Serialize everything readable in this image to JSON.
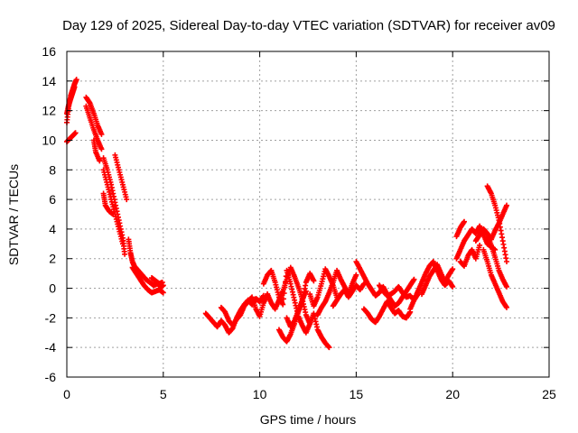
{
  "chart_data": {
    "type": "scatter",
    "title": "Day 129 of 2025, Sidereal Day-to-day VTEC variation (SDTVAR) for receiver av09",
    "xlabel": "GPS time / hours",
    "ylabel": "SDTVAR / TECUs",
    "xlim": [
      0,
      25
    ],
    "ylim": [
      -6,
      16
    ],
    "xticks": [
      0,
      5,
      10,
      15,
      20,
      25
    ],
    "yticks": [
      -6,
      -4,
      -2,
      0,
      2,
      4,
      6,
      8,
      10,
      12,
      14,
      16
    ],
    "grid": true,
    "marker": "+",
    "color": "#ff0000",
    "series": [
      {
        "name": "SDTVAR",
        "segments": [
          {
            "x": [
              0.0,
              0.1,
              0.2,
              0.3,
              0.4,
              0.5
            ],
            "y": [
              11.2,
              12.3,
              13.0,
              13.4,
              13.8,
              14.1
            ]
          },
          {
            "x": [
              0.0,
              0.15,
              0.3,
              0.45
            ],
            "y": [
              9.9,
              10.1,
              10.3,
              10.5
            ]
          },
          {
            "x": [
              0.0,
              0.1,
              0.2,
              0.3,
              0.4
            ],
            "y": [
              11.8,
              12.4,
              12.8,
              13.2,
              13.6
            ]
          },
          {
            "x": [
              1.0,
              1.2,
              1.4,
              1.6,
              1.8
            ],
            "y": [
              12.9,
              12.5,
              11.8,
              11.0,
              10.4
            ]
          },
          {
            "x": [
              1.0,
              1.2,
              1.4,
              1.6,
              1.8
            ],
            "y": [
              12.3,
              11.5,
              10.7,
              10.0,
              9.4
            ]
          },
          {
            "x": [
              1.4,
              1.5,
              1.7
            ],
            "y": [
              10.0,
              9.2,
              8.6
            ]
          },
          {
            "x": [
              1.9,
              2.1,
              2.3,
              2.5,
              2.7,
              2.9,
              3.0
            ],
            "y": [
              8.8,
              8.0,
              7.0,
              5.8,
              4.6,
              3.4,
              2.3
            ]
          },
          {
            "x": [
              1.9,
              2.1,
              2.3,
              2.5,
              2.7,
              2.9
            ],
            "y": [
              8.0,
              7.0,
              6.0,
              5.0,
              4.0,
              3.0
            ]
          },
          {
            "x": [
              1.9,
              2.0,
              2.2,
              2.4
            ],
            "y": [
              6.4,
              5.6,
              5.2,
              5.0
            ]
          },
          {
            "x": [
              2.5,
              2.7,
              2.9,
              3.1
            ],
            "y": [
              9.0,
              8.0,
              7.0,
              6.0
            ]
          },
          {
            "x": [
              3.2,
              3.3,
              3.4,
              3.5,
              3.7,
              3.9,
              4.1,
              4.3,
              4.5,
              4.7,
              4.9,
              5.0
            ],
            "y": [
              3.3,
              2.4,
              1.8,
              1.5,
              1.2,
              0.9,
              0.6,
              0.4,
              0.2,
              0.3,
              0.1,
              0.2
            ]
          },
          {
            "x": [
              3.4,
              3.6,
              3.8,
              4.0,
              4.2,
              4.4,
              4.6,
              4.8,
              5.0
            ],
            "y": [
              1.4,
              1.0,
              0.6,
              0.2,
              -0.1,
              -0.3,
              -0.2,
              -0.1,
              -0.3
            ]
          },
          {
            "x": [
              4.4,
              4.6,
              4.8,
              4.95
            ],
            "y": [
              0.7,
              0.5,
              0.3,
              0.4
            ]
          },
          {
            "x": [
              7.2,
              7.4,
              7.6,
              7.8,
              8.0,
              8.2,
              8.4,
              8.6,
              8.8,
              9.0,
              9.2,
              9.4,
              9.6,
              9.8,
              10.0,
              10.2
            ],
            "y": [
              -1.7,
              -2.0,
              -2.3,
              -2.6,
              -2.2,
              -2.5,
              -3.0,
              -2.7,
              -2.0,
              -1.5,
              -1.1,
              -0.8,
              -1.1,
              -0.7,
              -0.9,
              -0.5
            ]
          },
          {
            "x": [
              8.0,
              8.2,
              8.4,
              8.6,
              8.8,
              9.0,
              9.2,
              9.4,
              9.6,
              9.8,
              10.0,
              10.2,
              10.4
            ],
            "y": [
              -1.3,
              -1.6,
              -2.2,
              -2.5,
              -2.1,
              -1.8,
              -1.2,
              -0.9,
              -0.6,
              -1.4,
              -1.9,
              -1.0,
              -0.4
            ]
          },
          {
            "x": [
              10.2,
              10.4,
              10.6,
              10.8,
              11.0,
              11.2,
              11.4,
              11.6,
              11.8,
              12.0,
              12.2,
              12.4,
              12.6,
              12.8,
              13.0,
              13.2,
              13.4,
              13.6
            ],
            "y": [
              0.3,
              0.9,
              1.2,
              0.4,
              -0.6,
              -1.1,
              1.2,
              0.3,
              -0.8,
              -1.9,
              -2.5,
              -3.0,
              -2.4,
              -1.7,
              -2.8,
              -3.3,
              -3.7,
              -4.0
            ]
          },
          {
            "x": [
              10.4,
              10.6,
              10.8,
              11.0,
              11.2,
              11.4,
              11.6,
              11.8,
              12.0,
              12.2,
              12.4,
              12.6
            ],
            "y": [
              -0.4,
              -1.0,
              -1.4,
              -0.8,
              -0.2,
              0.6,
              1.4,
              0.8,
              0.1,
              -0.7,
              -1.8,
              -2.4
            ]
          },
          {
            "x": [
              11.0,
              11.2,
              11.4,
              11.6,
              11.8,
              12.0,
              12.2,
              12.4
            ],
            "y": [
              -2.8,
              -3.3,
              -3.6,
              -3.1,
              -2.4,
              -1.6,
              -0.8,
              -0.2
            ]
          },
          {
            "x": [
              11.4,
              11.6,
              11.8,
              12.0,
              12.2,
              12.4,
              12.6,
              12.8
            ],
            "y": [
              -2.0,
              -2.6,
              -2.2,
              -1.5,
              -0.9,
              0.4,
              1.0,
              0.5
            ]
          },
          {
            "x": [
              12.6,
              12.8,
              13.0,
              13.2,
              13.4,
              13.6,
              13.8,
              14.0
            ],
            "y": [
              -0.4,
              -1.2,
              -0.6,
              0.3,
              1.3,
              0.8,
              0.2,
              -0.6
            ]
          },
          {
            "x": [
              13.0,
              13.2,
              13.4,
              13.6,
              13.8,
              14.0,
              14.2,
              14.4,
              14.6,
              14.8,
              15.0
            ],
            "y": [
              -1.8,
              -1.3,
              -0.9,
              -0.3,
              0.4,
              1.2,
              0.6,
              0.1,
              -0.4,
              0.3,
              0.9
            ]
          },
          {
            "x": [
              13.8,
              14.0,
              14.2,
              14.4,
              14.6,
              14.8,
              15.0,
              15.2,
              15.4
            ],
            "y": [
              -1.2,
              -0.8,
              -0.4,
              -0.1,
              -0.6,
              -0.2,
              0.2,
              -0.1,
              0.3
            ]
          },
          {
            "x": [
              15.0,
              15.2,
              15.4,
              15.6,
              15.8,
              16.0,
              16.2,
              16.4,
              16.6,
              16.8,
              17.0,
              17.2,
              17.4,
              17.6,
              17.8,
              18.0
            ],
            "y": [
              1.8,
              1.3,
              0.8,
              0.3,
              -0.1,
              -0.5,
              -0.3,
              0.1,
              -0.4,
              -0.8,
              -1.2,
              -1.0,
              -0.6,
              -0.2,
              0.2,
              0.6
            ]
          },
          {
            "x": [
              15.4,
              15.6,
              15.8,
              16.0,
              16.2,
              16.4,
              16.6,
              16.8,
              17.0,
              17.2,
              17.4,
              17.6,
              17.8
            ],
            "y": [
              -1.4,
              -1.7,
              -2.1,
              -2.3,
              -1.9,
              -1.4,
              -0.9,
              -1.3,
              -1.7,
              -1.5,
              -1.9,
              -2.0,
              -1.6
            ]
          },
          {
            "x": [
              16.2,
              16.4,
              16.6,
              16.8,
              17.0,
              17.2,
              17.4,
              17.6,
              17.8,
              18.0,
              18.2
            ],
            "y": [
              0.2,
              -0.2,
              -0.5,
              -0.4,
              -0.2,
              0.1,
              -0.3,
              -0.6,
              -0.5,
              -0.8,
              -0.4
            ]
          },
          {
            "x": [
              17.8,
              18.0,
              18.2,
              18.4,
              18.6,
              18.8,
              19.0,
              19.2,
              19.4,
              19.6,
              19.8,
              20.0
            ],
            "y": [
              -1.4,
              -0.8,
              -0.2,
              0.4,
              1.0,
              1.5,
              1.8,
              1.2,
              0.6,
              0.2,
              0.5,
              0.1
            ]
          },
          {
            "x": [
              18.4,
              18.6,
              18.8,
              19.0,
              19.2,
              19.4,
              19.6,
              19.8,
              20.0
            ],
            "y": [
              -0.4,
              0.2,
              0.8,
              1.2,
              1.6,
              1.0,
              0.4,
              0.9,
              1.3
            ]
          },
          {
            "x": [
              20.2,
              20.4,
              20.6,
              20.8,
              21.0,
              21.2,
              21.4,
              21.6,
              21.8,
              22.0,
              22.2
            ],
            "y": [
              2.0,
              2.6,
              3.2,
              3.6,
              4.0,
              3.7,
              4.2,
              3.6,
              3.0,
              2.8,
              2.6
            ]
          },
          {
            "x": [
              20.2,
              20.4,
              20.6
            ],
            "y": [
              3.5,
              4.1,
              4.5
            ]
          },
          {
            "x": [
              20.4,
              20.6,
              20.8,
              21.0,
              21.2,
              21.4
            ],
            "y": [
              1.8,
              1.5,
              2.2,
              2.6,
              2.0,
              2.9
            ]
          },
          {
            "x": [
              21.2,
              21.4,
              21.6,
              21.8,
              22.0,
              22.2,
              22.4,
              22.6,
              22.8
            ],
            "y": [
              3.2,
              3.6,
              4.0,
              3.7,
              3.3,
              3.9,
              4.4,
              5.0,
              5.6
            ]
          },
          {
            "x": [
              21.6,
              21.8,
              22.0,
              22.2,
              22.4,
              22.6,
              22.8
            ],
            "y": [
              2.6,
              1.8,
              0.9,
              0.3,
              -0.3,
              -0.9,
              -1.3
            ]
          },
          {
            "x": [
              21.8,
              22.0,
              22.2,
              22.4,
              22.6,
              22.8
            ],
            "y": [
              6.9,
              6.4,
              5.6,
              4.6,
              3.2,
              1.8
            ]
          },
          {
            "x": [
              21.8,
              22.0,
              22.2,
              22.4,
              22.6,
              22.8
            ],
            "y": [
              3.6,
              2.9,
              2.1,
              1.2,
              0.6,
              0.1
            ]
          }
        ]
      }
    ]
  }
}
